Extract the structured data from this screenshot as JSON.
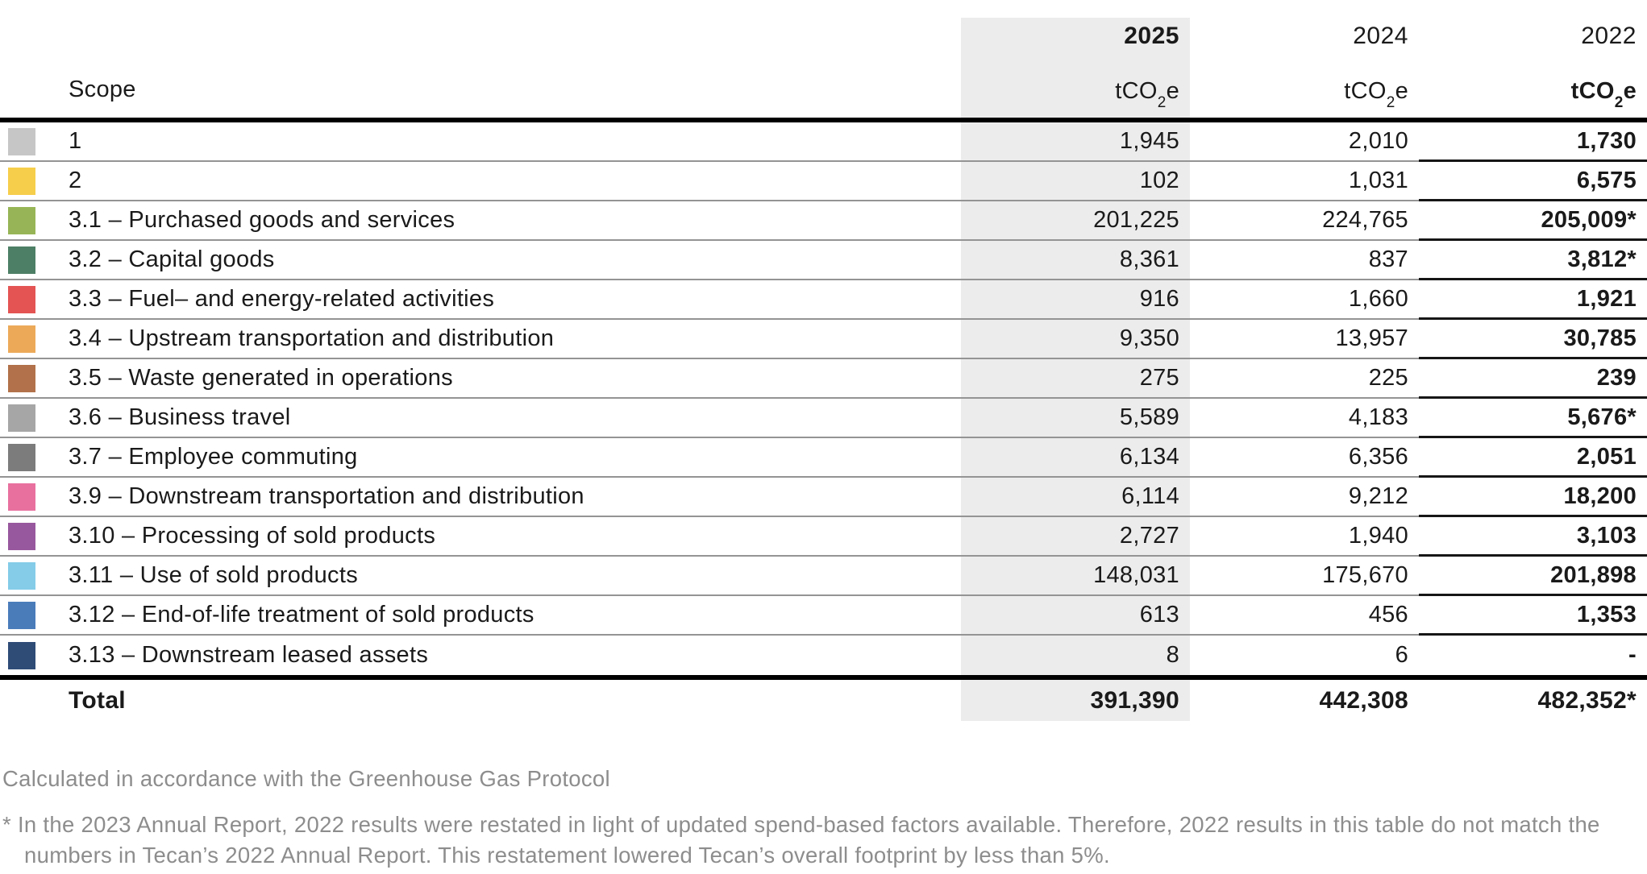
{
  "table": {
    "scope_header": "Scope",
    "columns": [
      {
        "year": "2025",
        "unit_pre": "tCO",
        "unit_sub": "2",
        "unit_post": "e",
        "highlighted": true
      },
      {
        "year": "2024",
        "unit_pre": "tCO",
        "unit_sub": "2",
        "unit_post": "e",
        "highlighted": false
      },
      {
        "year": "2022",
        "unit_pre": "tCO",
        "unit_sub": "2",
        "unit_post": "e",
        "highlighted": false
      }
    ],
    "rows": [
      {
        "label": "1",
        "color": "#c6c6c6",
        "y2025": "1,945",
        "y2024": "2,010",
        "y2022": "1,730"
      },
      {
        "label": "2",
        "color": "#f6ce4b",
        "y2025": "102",
        "y2024": "1,031",
        "y2022": "6,575"
      },
      {
        "label": "3.1 – Purchased goods and services",
        "color": "#97b556",
        "y2025": "201,225",
        "y2024": "224,765",
        "y2022": "205,009*"
      },
      {
        "label": "3.2 – Capital goods",
        "color": "#4d7f66",
        "y2025": "8,361",
        "y2024": "837",
        "y2022": "3,812*"
      },
      {
        "label": "3.3 – Fuel– and energy-related activities",
        "color": "#e45453",
        "y2025": "916",
        "y2024": "1,660",
        "y2022": "1,921"
      },
      {
        "label": "3.4 – Upstream transportation and distribution",
        "color": "#ecaa59",
        "y2025": "9,350",
        "y2024": "13,957",
        "y2022": "30,785"
      },
      {
        "label": "3.5 – Waste generated in operations",
        "color": "#b2714a",
        "y2025": "275",
        "y2024": "225",
        "y2022": "239"
      },
      {
        "label": "3.6 – Business travel",
        "color": "#a6a6a6",
        "y2025": "5,589",
        "y2024": "4,183",
        "y2022": "5,676*"
      },
      {
        "label": "3.7 – Employee commuting",
        "color": "#7c7c7c",
        "y2025": "6,134",
        "y2024": "6,356",
        "y2022": "2,051"
      },
      {
        "label": "3.9 – Downstream transportation and distribution",
        "color": "#e8709f",
        "y2025": "6,114",
        "y2024": "9,212",
        "y2022": "18,200"
      },
      {
        "label": "3.10 – Processing of sold products",
        "color": "#98589e",
        "y2025": "2,727",
        "y2024": "1,940",
        "y2022": "3,103"
      },
      {
        "label": "3.11 – Use of sold products",
        "color": "#84cce8",
        "y2025": "148,031",
        "y2024": "175,670",
        "y2022": "201,898"
      },
      {
        "label": "3.12 – End-of-life treatment of sold products",
        "color": "#4a7cba",
        "y2025": "613",
        "y2024": "456",
        "y2022": "1,353"
      },
      {
        "label": "3.13 – Downstream leased assets",
        "color": "#2f4c77",
        "y2025": "8",
        "y2024": "6",
        "y2022": "-"
      }
    ],
    "total": {
      "label": "Total",
      "y2025": "391,390",
      "y2024": "442,308",
      "y2022": "482,352*"
    }
  },
  "notes": {
    "protocol": "Calculated in accordance with the Greenhouse Gas Protocol",
    "restatement": "* In the 2023 Annual Report, 2022 results were restated in light of updated spend-based factors available. Therefore, 2022 results in this table do not match the numbers in Tecan’s 2022 Annual Report. This restatement lowered Tecan’s overall footprint by less than 5%."
  },
  "colors": {
    "highlight_column_bg": "#ececec",
    "rule_gray": "#949494",
    "rule_black": "#161616",
    "heavy_rule": "#000000",
    "text": "#1a1a1a",
    "note_text": "#8d8d8d"
  }
}
